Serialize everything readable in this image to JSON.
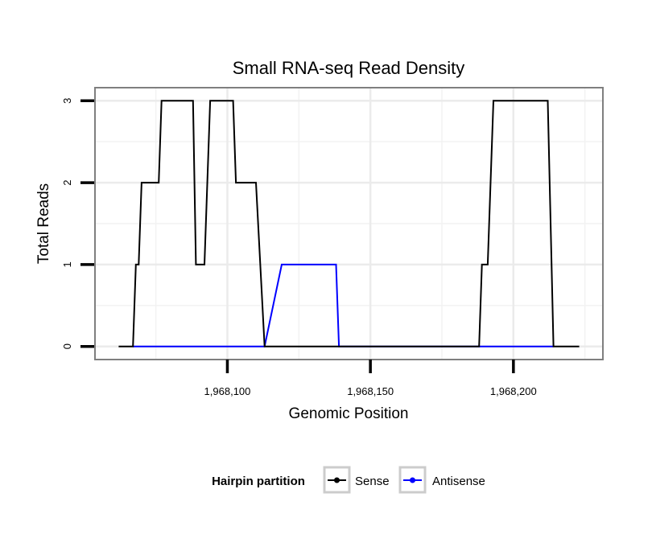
{
  "chart_data": {
    "type": "line",
    "title": "Small RNA-seq Read Density",
    "xlabel": "Genomic Position",
    "ylabel": "Total Reads",
    "xlim": [
      1968054,
      1968231
    ],
    "ylim": [
      -0.15,
      3.15
    ],
    "xticks": [
      1968100,
      1968150,
      1968200
    ],
    "xtick_labels": [
      "1,968,100",
      "1,968,150",
      "1,968,200"
    ],
    "yticks": [
      0,
      1,
      2,
      3
    ],
    "ytick_labels": [
      "0",
      "1",
      "2",
      "3"
    ],
    "grid": true,
    "legend": {
      "title": "Hairpin partition",
      "position": "bottom"
    },
    "series": [
      {
        "name": "Sense",
        "color": "#000000",
        "x": [
          1968062,
          1968067,
          1968068,
          1968069,
          1968070,
          1968076,
          1968077,
          1968088,
          1968089,
          1968092,
          1968094,
          1968102,
          1968103,
          1968110,
          1968113,
          1968119,
          1968138,
          1968188,
          1968189,
          1968191,
          1968193,
          1968212,
          1968214,
          1968223
        ],
        "y": [
          0,
          0,
          1,
          1,
          2,
          2,
          3,
          3,
          1,
          1,
          3,
          3,
          2,
          2,
          0,
          0,
          0,
          0,
          1,
          1,
          3,
          3,
          0,
          0
        ]
      },
      {
        "name": "Antisense",
        "color": "#0000ff",
        "x": [
          1968067,
          1968113,
          1968119,
          1968138,
          1968139,
          1968214
        ],
        "y": [
          0,
          0,
          1,
          1,
          0,
          0
        ]
      }
    ]
  }
}
